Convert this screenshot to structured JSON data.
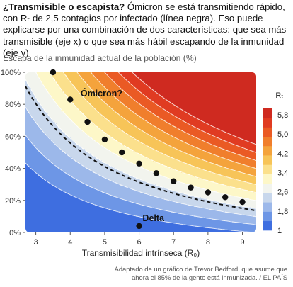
{
  "intro": {
    "bold": "¿Transmisible o escapista?",
    "text": " Ómicron se está transmitiendo rápido, con Rₜ de 2,5 contagios por infectado (línea negra). Eso puede explicarse por una combinación de dos características: que sea más transmisible (eje x) o que sea más hábil escapando de la inmunidad (eje y)"
  },
  "source": "Adaptado de un gráfico de Trevor Bedford, que asume que ahora el 85% de la gente está inmunizada. / EL PAÍS",
  "chart_data": {
    "type": "heatmap",
    "title": "",
    "subtitle": "Escapa de la inmunidad actual de la población (%)",
    "xlabel": "Transmisibilidad intrínseca (R₀)",
    "ylabel": "",
    "xlim": [
      2.7,
      9.4
    ],
    "ylim": [
      0,
      100
    ],
    "x_ticks": [
      3,
      4,
      5,
      6,
      7,
      8,
      9
    ],
    "y_ticks": [
      0,
      20,
      40,
      60,
      80,
      100
    ],
    "y_tick_labels": [
      "0%",
      "20%",
      "40%",
      "60%",
      "80%",
      "100%"
    ],
    "immunity_assumed": 0.85,
    "legend": {
      "title": "Rₜ",
      "labels": [
        "5,8",
        "5,0",
        "4,2",
        "3,4",
        "2,6",
        "1,8",
        "1"
      ],
      "thresholds": [
        1,
        1.4,
        1.8,
        2.2,
        2.6,
        3.0,
        3.4,
        3.8,
        4.2,
        4.6,
        5.0,
        5.4,
        5.8
      ],
      "colors": [
        "#3e6ee0",
        "#6d96e6",
        "#9cb8ea",
        "#c8d7ec",
        "#f2f4ee",
        "#fdf7c8",
        "#fbe08c",
        "#f7c458",
        "#f4a33c",
        "#f07e2c",
        "#ea5a24",
        "#e03b22",
        "#cf2a20"
      ]
    },
    "dashed_line": {
      "name": "Rₜ = 2,5",
      "value": 2.5
    },
    "series": [
      {
        "name": "Ómicron (Rₜ = 2,5)",
        "x": [
          3.5,
          4.0,
          4.5,
          5.0,
          5.5,
          6.0,
          6.5,
          7.0,
          7.5,
          8.0,
          8.5,
          9.0
        ],
        "y": [
          100,
          83,
          69,
          58,
          50,
          43,
          37,
          32,
          28,
          25,
          22,
          19
        ]
      }
    ],
    "annotations": [
      {
        "text": "Ómicron?",
        "x": 4.3,
        "y": 85
      },
      {
        "text": "Delta",
        "x": 6.1,
        "y": 7
      }
    ],
    "delta_point": {
      "x": 6.0,
      "y": 4
    }
  }
}
